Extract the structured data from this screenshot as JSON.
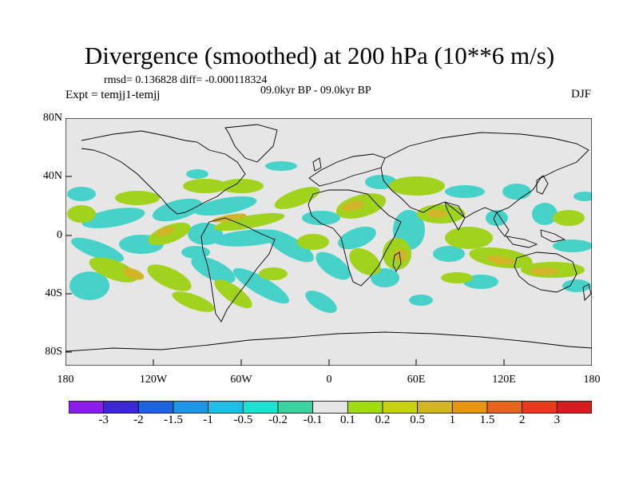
{
  "title": "Divergence (smoothed) at 200 hPa (10**6 m/s)",
  "stats_line": "rmsd= 0.136828 diff= -0.000118324",
  "expt_line": "Expt = temjj1-temjj",
  "period_line": "09.0kyr BP - 09.0kyr BP",
  "season": "DJF",
  "lat_labels": [
    "80N",
    "40N",
    "0",
    "40S",
    "80S"
  ],
  "lon_labels": [
    "180",
    "120W",
    "60W",
    "0",
    "60E",
    "120E",
    "180"
  ],
  "colorbar": {
    "colors": [
      "#8a1ee6",
      "#3c28d2",
      "#1e64dc",
      "#1e96e6",
      "#1ebee6",
      "#1ee1d2",
      "#3cd2a0",
      "#e6e6e6",
      "#a0dc14",
      "#c8d214",
      "#d2b428",
      "#e69614",
      "#e6641e",
      "#e63c1e",
      "#d21e1e"
    ],
    "labels": [
      "-3",
      "-2",
      "-1.5",
      "-1",
      "-0.5",
      "-0.2",
      "-0.1",
      "0.1",
      "0.2",
      "0.5",
      "1",
      "1.5",
      "2",
      "3"
    ]
  },
  "colors": {
    "background": "#e6e6e6",
    "negative": "#46d2c8",
    "positive": "#a0d21e",
    "strong_positive": "#d2b428"
  }
}
